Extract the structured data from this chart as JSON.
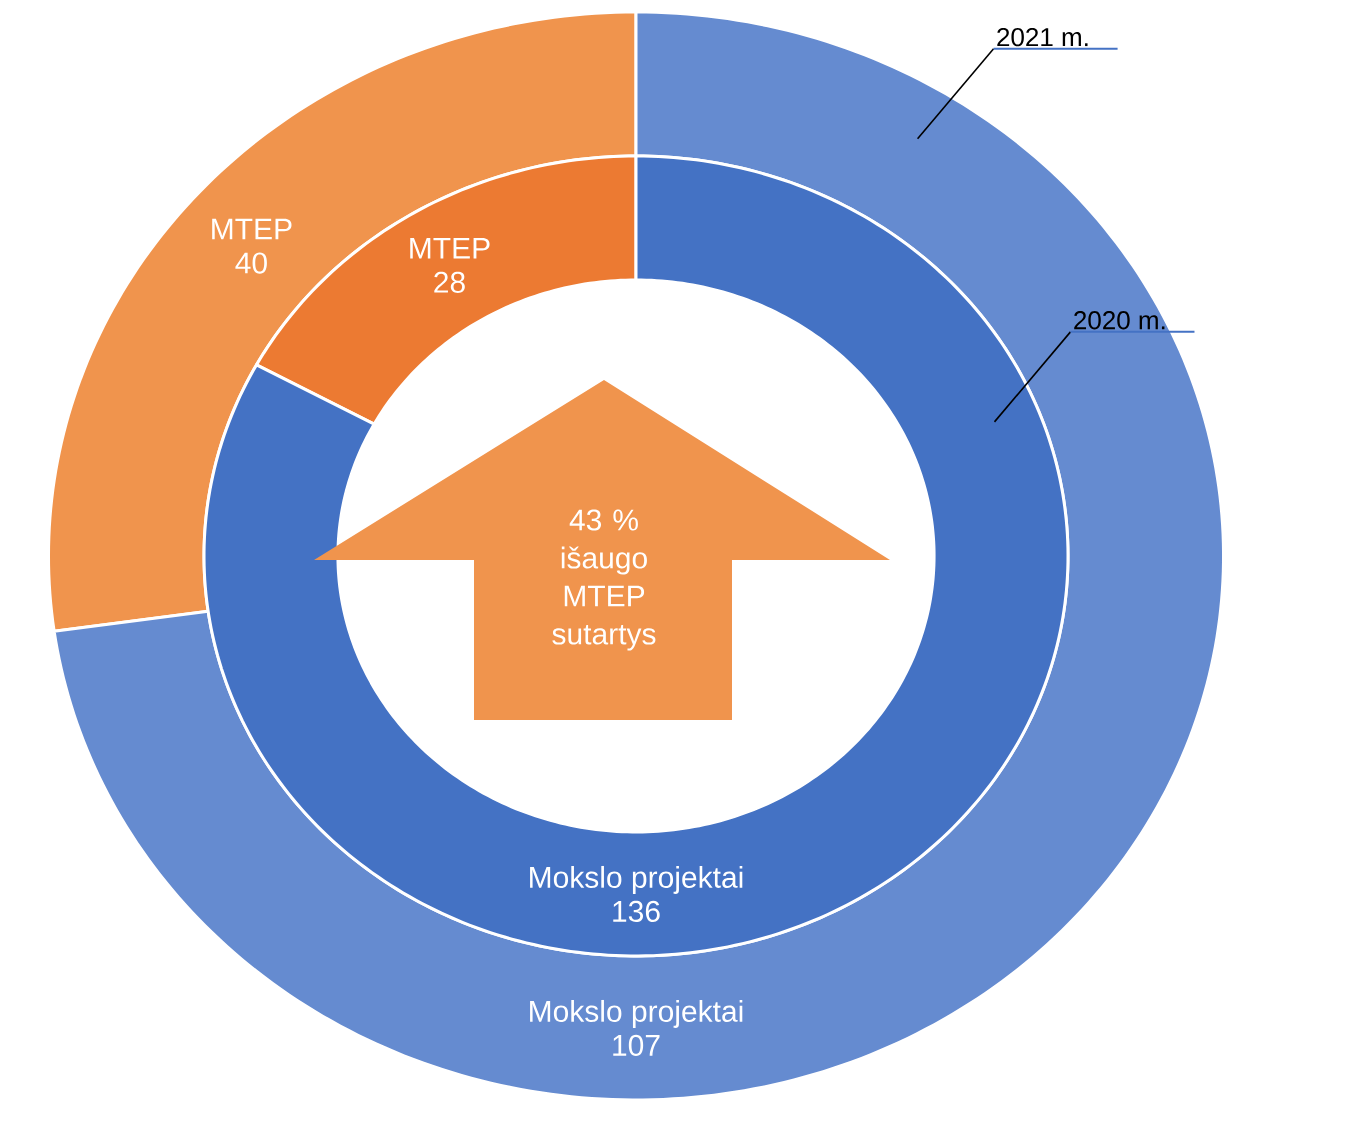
{
  "chart_data": {
    "type": "donut",
    "categories": [
      "MTEP",
      "Mokslo projektai"
    ],
    "series": [
      {
        "name": "2021 m.",
        "values": [
          40,
          107
        ],
        "colors": [
          "#f0944d",
          "#658bd0"
        ]
      },
      {
        "name": "2020 m.",
        "values": [
          28,
          136
        ],
        "colors": [
          "#ec7a32",
          "#4472c4"
        ]
      }
    ],
    "data_labels": true,
    "annotations": [
      "43 % išaugo MTEP sutartys"
    ]
  }
}
